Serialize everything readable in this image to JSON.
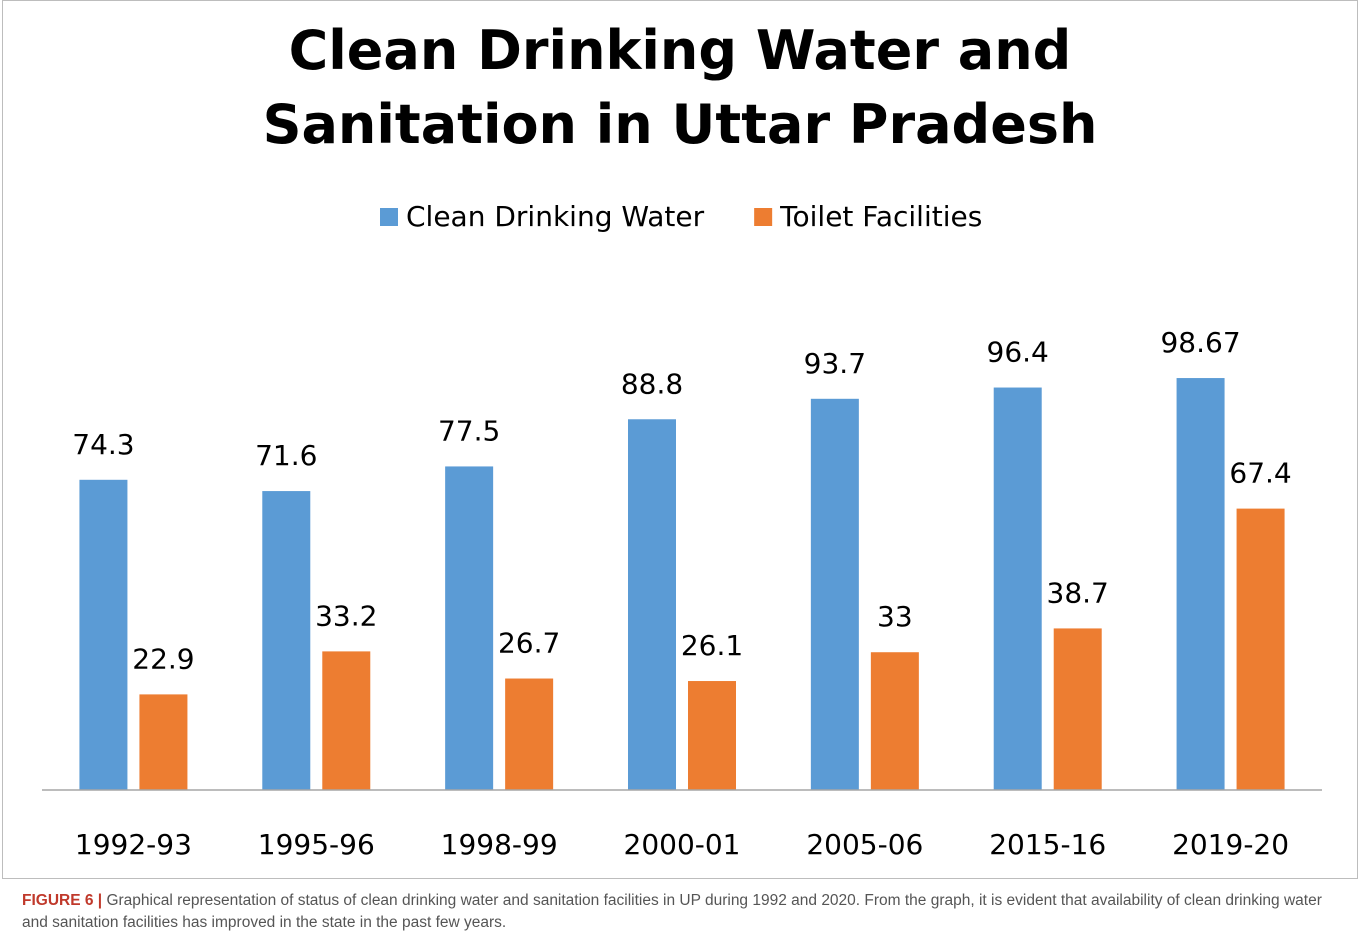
{
  "chart_data": {
    "type": "bar",
    "title": "Clean Drinking Water and Sanitation in Uttar Pradesh",
    "categories": [
      "1992-93",
      "1995-96",
      "1998-99",
      "2000-01",
      "2005-06",
      "2015-16",
      "2019-20"
    ],
    "series": [
      {
        "name": "Clean Drinking Water",
        "color": "#5b9bd5",
        "values": [
          74.3,
          71.6,
          77.5,
          88.8,
          93.7,
          96.4,
          98.67
        ]
      },
      {
        "name": "Toilet Facilities",
        "color": "#ed7d31",
        "values": [
          22.9,
          33.2,
          26.7,
          26.1,
          33,
          38.7,
          67.4
        ]
      }
    ],
    "legend": "top"
  },
  "caption": {
    "label": "FIGURE 6 |",
    "text": "Graphical representation of status of clean drinking water and sanitation facilities in UP during 1992 and 2020. From the graph, it is evident that availability of clean drinking water and sanitation facilities has improved in the state in the past few years."
  }
}
